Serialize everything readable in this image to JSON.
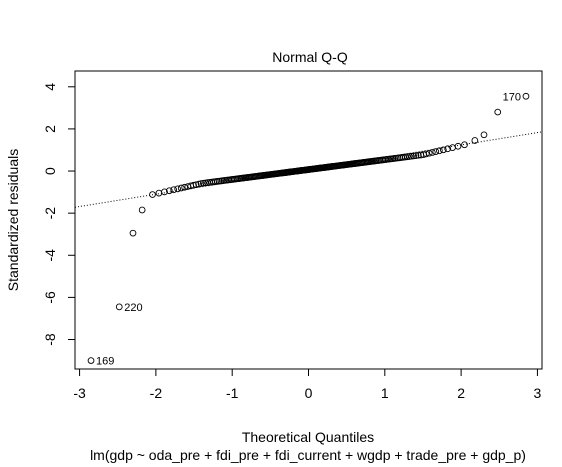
{
  "chart_data": {
    "type": "scatter",
    "title": "Normal Q-Q",
    "xlabel": "Theoretical Quantiles",
    "ylabel": "Standardized residuals",
    "subtitle": "lm(gdp ~ oda_pre + fdi_pre + fdi_current + wgdp + trade_pre + gdp_p)",
    "xlim": [
      -3.06,
      3.06
    ],
    "ylim": [
      -9.4,
      4.75
    ],
    "x_ticks": [
      -3,
      -2,
      -1,
      0,
      1,
      2,
      3
    ],
    "y_ticks": [
      -8,
      -6,
      -4,
      -2,
      0,
      2,
      4
    ],
    "y_tick_labels": [
      "-8",
      "-6",
      "-4",
      "-2",
      "0",
      "2",
      "4"
    ],
    "x_tick_labels": [
      "-3",
      "-2",
      "-1",
      "0",
      "1",
      "2",
      "3"
    ],
    "reference_line": {
      "x": [
        -3.06,
        3.06
      ],
      "y": [
        -1.72,
        1.86
      ],
      "style": "dotted"
    },
    "labeled_points": [
      {
        "label": "169",
        "x": -2.85,
        "y": -9.0
      },
      {
        "label": "220",
        "x": -2.48,
        "y": -6.45
      },
      {
        "label": "170",
        "x": 2.85,
        "y": 3.55
      }
    ],
    "points": {
      "n": 220,
      "fixed": [
        {
          "x": -2.85,
          "y": -9.0
        },
        {
          "x": -2.48,
          "y": -6.45
        },
        {
          "x": -2.3,
          "y": -2.95
        },
        {
          "x": -2.18,
          "y": -1.85
        },
        {
          "x": 2.18,
          "y": 1.45
        },
        {
          "x": 2.3,
          "y": 1.72
        },
        {
          "x": 2.48,
          "y": 2.8
        },
        {
          "x": 2.85,
          "y": 3.55
        }
      ],
      "mid_slope": 0.47,
      "mid_intercept": 0.07
    },
    "grid": false,
    "legend": "none"
  }
}
